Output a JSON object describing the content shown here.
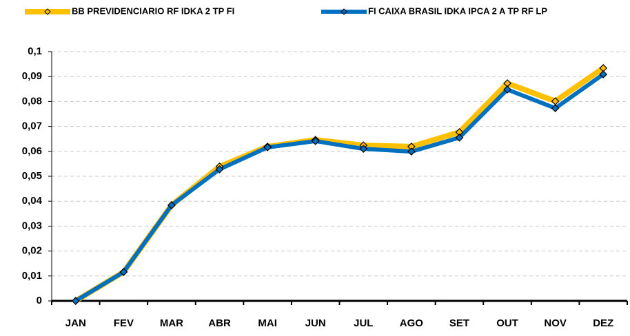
{
  "chart_data": {
    "type": "line",
    "categories": [
      "JAN",
      "FEV",
      "MAR",
      "ABR",
      "MAI",
      "JUN",
      "JUL",
      "AGO",
      "SET",
      "OUT",
      "NOV",
      "DEZ"
    ],
    "series": [
      {
        "name": "BB PREVIDENCIARIO RF IDKA 2 TP FI",
        "color": "#ffc000",
        "values": [
          0,
          0.0116,
          0.0384,
          0.0539,
          0.0619,
          0.0646,
          0.0624,
          0.0619,
          0.0677,
          0.0873,
          0.0801,
          0.0934
        ]
      },
      {
        "name": "FI CAIXA BRASIL IDKA IPCA 2 A TP RF LP",
        "color": "#0070c0",
        "values": [
          0,
          0.0116,
          0.0384,
          0.0528,
          0.0616,
          0.0641,
          0.061,
          0.0599,
          0.0655,
          0.0848,
          0.0773,
          0.0909
        ]
      }
    ],
    "ylim": [
      0,
      0.1
    ],
    "yticks": [
      0,
      {
        "value": 0.01,
        "label": "0,01"
      },
      {
        "value": 0.02,
        "label": "0,02"
      },
      {
        "value": 0.03,
        "label": "0,03"
      },
      {
        "value": 0.04,
        "label": "0,04"
      },
      {
        "value": 0.05,
        "label": "0,05"
      },
      {
        "value": 0.06,
        "label": "0,06"
      },
      {
        "value": 0.07,
        "label": "0,07"
      },
      {
        "value": 0.08,
        "label": "0,08"
      },
      {
        "value": 0.09,
        "label": "0,09"
      },
      {
        "value": 0.1,
        "label": "0,1"
      }
    ],
    "grid": true
  }
}
